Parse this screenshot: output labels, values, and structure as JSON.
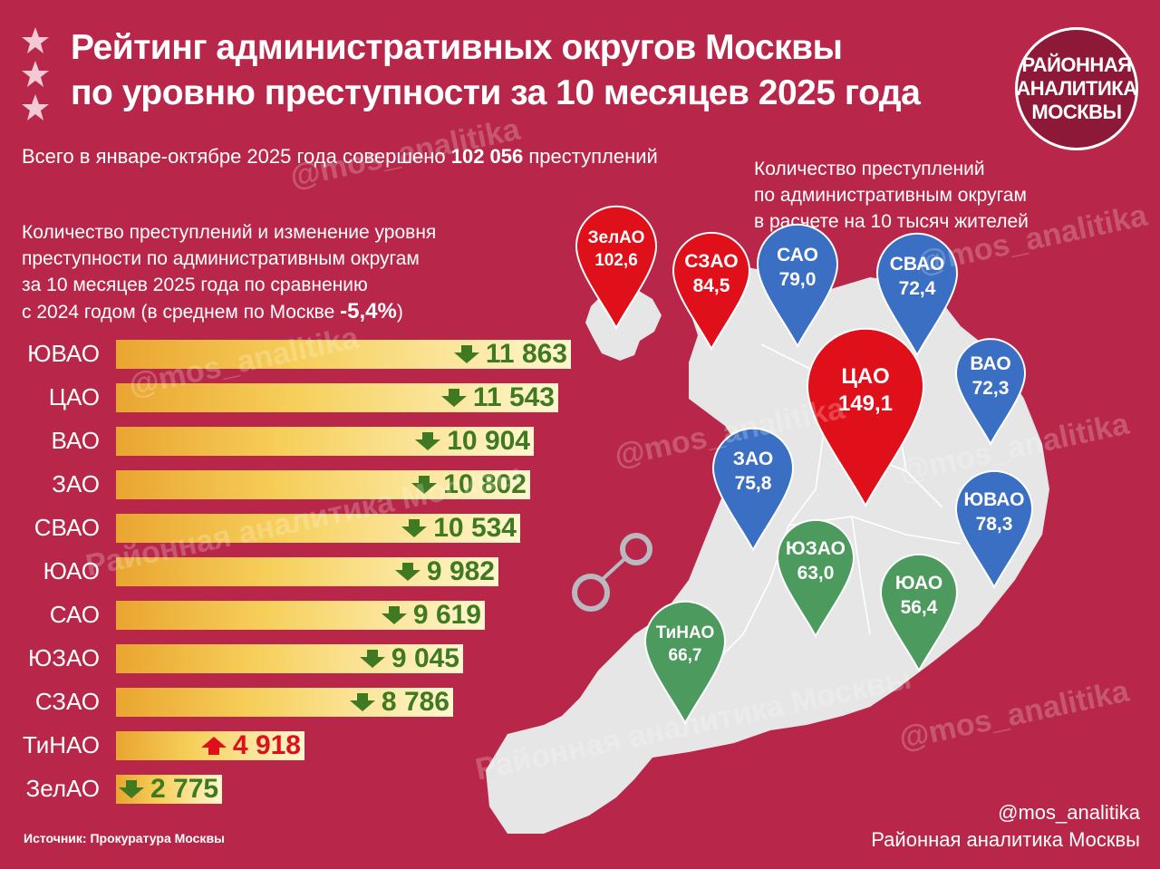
{
  "header": {
    "title_line1": "Рейтинг административных округов Москвы",
    "title_line2": "по уровню преступности за 10 месяцев 2025 года"
  },
  "logo": {
    "line1": "РАЙОННАЯ",
    "line2": "АНАЛИТИКА",
    "line3": "МОСКВЫ"
  },
  "total": {
    "prefix": "Всего в январе-октябре 2025 года совершено",
    "value": "102 056",
    "suffix": "преступлений"
  },
  "left_desc": {
    "line1": "Количество преступлений и изменение уровня",
    "line2": "преступности по административным округам",
    "line3": "за 10 месяцев 2025 года по сравнению",
    "line4": "с 2024 годом (в среднем по Москве",
    "avg": "-5,4%",
    "line4_end": ")"
  },
  "right_desc": {
    "line1": "Количество преступлений",
    "line2": "по административным округам",
    "line3": "в расчете на 10 тысяч жителей"
  },
  "chart_data": [
    {
      "type": "bar",
      "orientation": "horizontal",
      "categories": [
        "ЮВАО",
        "ЦАО",
        "ВАО",
        "ЗАО",
        "СВАО",
        "ЮАО",
        "САО",
        "ЮЗАО",
        "СЗАО",
        "ТиНАО",
        "ЗелАО"
      ],
      "labels": [
        "11 863",
        "11 543",
        "10 904",
        "10 802",
        "10 534",
        "9 982",
        "9 619",
        "9 045",
        "8 786",
        "4 918",
        "2 775"
      ],
      "values": [
        11863,
        11543,
        10904,
        10802,
        10534,
        9982,
        9619,
        9045,
        8786,
        4918,
        2775
      ],
      "change_direction": [
        "down",
        "down",
        "down",
        "down",
        "down",
        "down",
        "down",
        "down",
        "down",
        "up",
        "down"
      ],
      "colors": {
        "bar_start": "#e9a530",
        "bar_end": "#fff7cf",
        "down": "#3f7a22",
        "up": "#e0101a"
      }
    },
    {
      "type": "map",
      "unit": "на 10 тысяч жителей",
      "districts": [
        {
          "name": "ЗелАО",
          "value": "102,6",
          "color": "#e0101a"
        },
        {
          "name": "СЗАО",
          "value": "84,5",
          "color": "#e0101a"
        },
        {
          "name": "ЦАО",
          "value": "149,1",
          "color": "#e0101a"
        },
        {
          "name": "САО",
          "value": "79,0",
          "color": "#3a6fc4"
        },
        {
          "name": "СВАО",
          "value": "72,4",
          "color": "#3a6fc4"
        },
        {
          "name": "ВАО",
          "value": "72,3",
          "color": "#3a6fc4"
        },
        {
          "name": "ЗАО",
          "value": "75,8",
          "color": "#3a6fc4"
        },
        {
          "name": "ЮВАО",
          "value": "78,3",
          "color": "#3a6fc4"
        },
        {
          "name": "ЮЗАО",
          "value": "63,0",
          "color": "#4c9a5e"
        },
        {
          "name": "ЮАО",
          "value": "56,4",
          "color": "#4c9a5e"
        },
        {
          "name": "ТиНАО",
          "value": "66,7",
          "color": "#4c9a5e"
        }
      ]
    }
  ],
  "watermarks": {
    "handle": "@mos_analitika",
    "name": "Районная аналитика Москвы"
  },
  "source": "Источник: Прокуратура Москвы",
  "credits": {
    "handle": "@mos_analitika",
    "name": "Районная аналитика Москвы"
  }
}
